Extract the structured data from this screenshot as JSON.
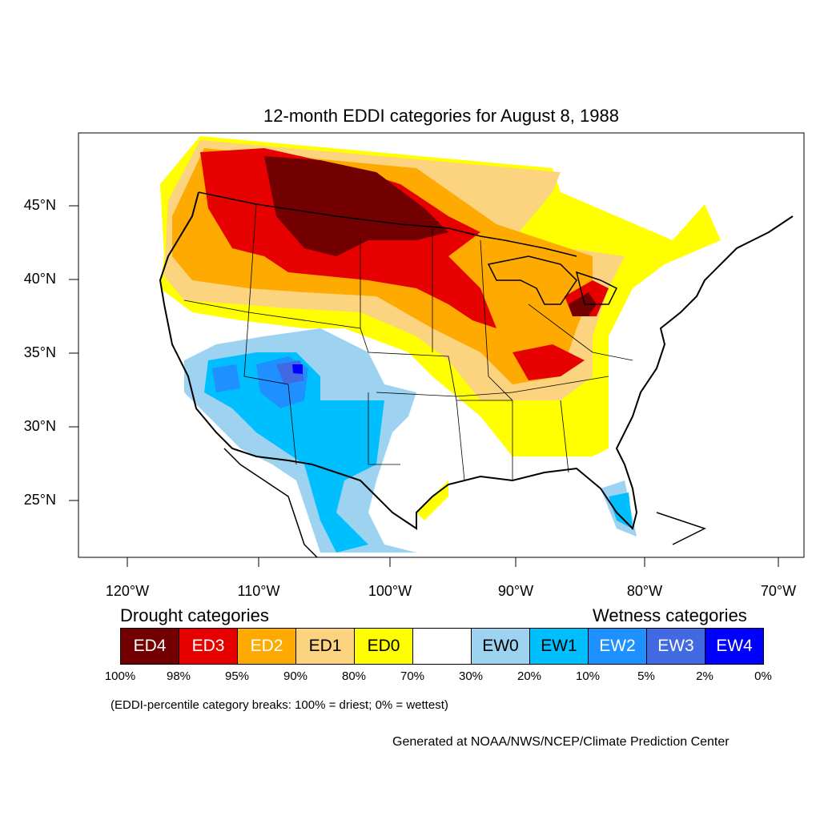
{
  "title": "12-month EDDI categories for August 8, 1988",
  "lat_ticks": [
    "45°N",
    "40°N",
    "35°N",
    "30°N",
    "25°N"
  ],
  "lon_ticks": [
    "120°W",
    "110°W",
    "100°W",
    "90°W",
    "80°W",
    "70°W"
  ],
  "legend": {
    "drought_heading": "Drought categories",
    "wetness_heading": "Wetness categories",
    "categories": [
      {
        "label": "ED4",
        "color": "#730000",
        "text_color": "#ffffff"
      },
      {
        "label": "ED3",
        "color": "#e60000",
        "text_color": "#ffffff"
      },
      {
        "label": "ED2",
        "color": "#ffaa00",
        "text_color": "#ffffff"
      },
      {
        "label": "ED1",
        "color": "#fcd37f",
        "text_color": "#000000"
      },
      {
        "label": "ED0",
        "color": "#ffff00",
        "text_color": "#000000"
      },
      {
        "label": "",
        "color": "#ffffff",
        "text_color": "#000000"
      },
      {
        "label": "EW0",
        "color": "#9dd3f0",
        "text_color": "#000000"
      },
      {
        "label": "EW1",
        "color": "#00bfff",
        "text_color": "#000000"
      },
      {
        "label": "EW2",
        "color": "#1e90ff",
        "text_color": "#ffffff"
      },
      {
        "label": "EW3",
        "color": "#4169e1",
        "text_color": "#ffffff"
      },
      {
        "label": "EW4",
        "color": "#0000ff",
        "text_color": "#ffffff"
      }
    ],
    "breaks": [
      "100%",
      "98%",
      "95%",
      "90%",
      "80%",
      "70%",
      "30%",
      "20%",
      "10%",
      "5%",
      "2%",
      "0%"
    ],
    "note": "(EDDI-percentile category breaks: 100% = driest; 0% = wettest)"
  },
  "credit": "Generated at NOAA/NWS/NCEP/Climate Prediction Center"
}
